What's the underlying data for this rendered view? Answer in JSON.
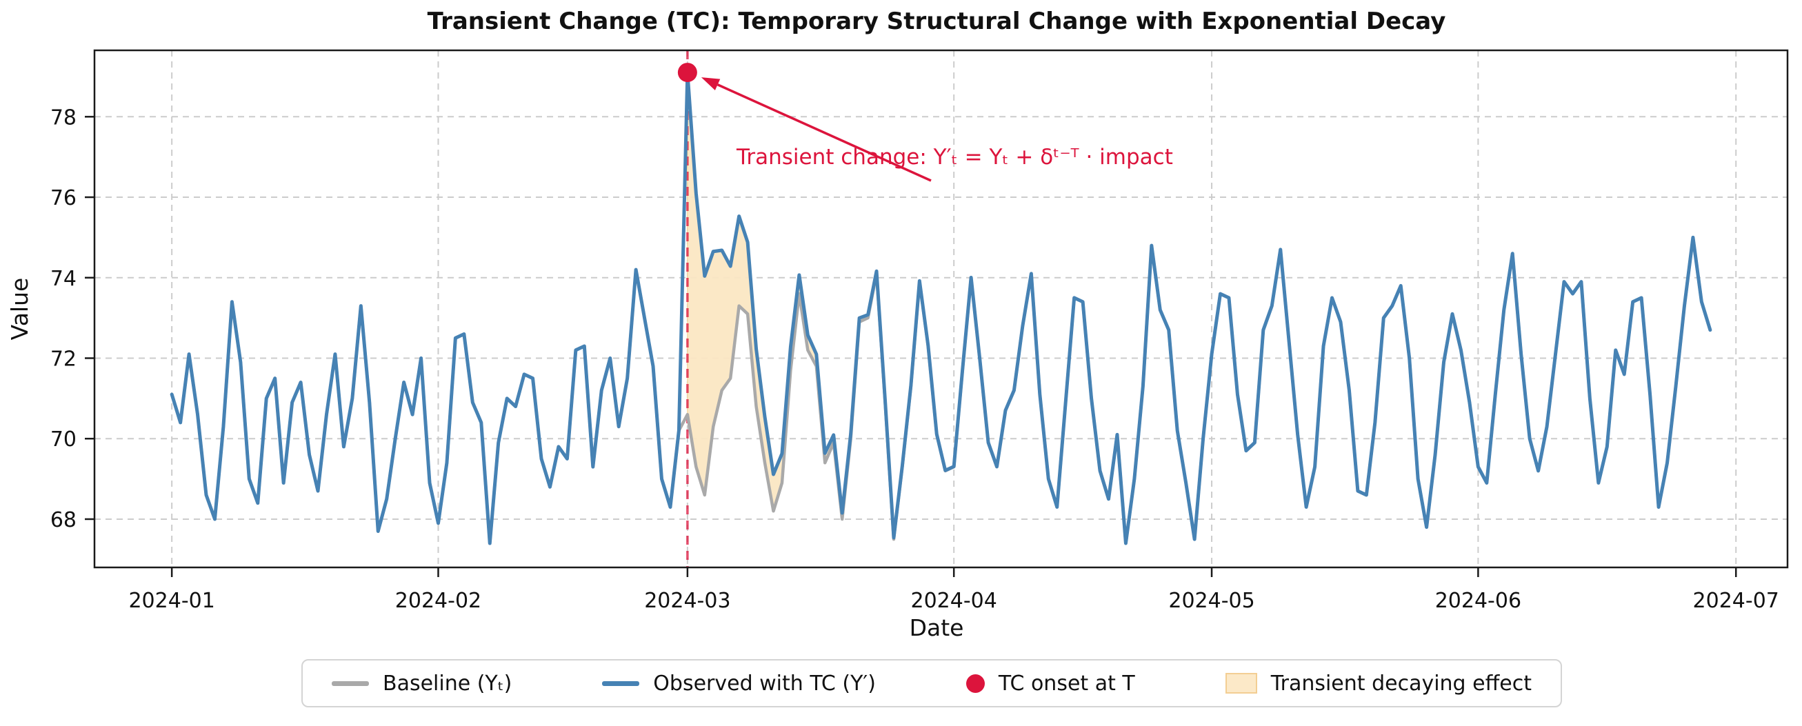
{
  "title": "Transient Change (TC): Temporary Structural Change with Exponential Decay",
  "axes": {
    "x_label": "Date",
    "y_label": "Value",
    "y_ticks": [
      68,
      70,
      72,
      74,
      76,
      78
    ],
    "x_ticks": [
      {
        "label": "2024-01",
        "day": 0
      },
      {
        "label": "2024-02",
        "day": 31
      },
      {
        "label": "2024-03",
        "day": 60
      },
      {
        "label": "2024-04",
        "day": 91
      },
      {
        "label": "2024-05",
        "day": 121
      },
      {
        "label": "2024-06",
        "day": 152
      },
      {
        "label": "2024-07",
        "day": 182
      }
    ],
    "xlim_days": [
      -9,
      188
    ],
    "ylim": [
      66.8,
      79.65
    ],
    "grid": "dashed"
  },
  "annotation": {
    "text": "Transient change: Y′ₜ = Yₜ + δᵗ⁻ᵀ · impact",
    "color": "#DC143C"
  },
  "legend": {
    "items": [
      {
        "id": "baseline",
        "label": "Baseline (Yₜ)",
        "swatch": "line",
        "color": "#A9A9A9"
      },
      {
        "id": "observed",
        "label": "Observed with TC (Y′)",
        "swatch": "line",
        "color": "#4682B4"
      },
      {
        "id": "tc-onset",
        "label": "TC onset at T",
        "swatch": "dot",
        "color": "#DC143C"
      },
      {
        "id": "transient-effect",
        "label": "Transient decaying effect",
        "swatch": "patch",
        "color": "#FCE9C8",
        "edge": "#F3CE93"
      }
    ]
  },
  "colors": {
    "observed_line": "#4682B4",
    "baseline_line": "#A9A9A9",
    "accent_red": "#DC143C",
    "transient_fill": "#FBE7C4",
    "transient_fill_edge": "#F5D7A0",
    "grid_line": "#CCCCCC",
    "spine": "#1a1a1a",
    "background": "#FFFFFF"
  },
  "chart_data": {
    "type": "line",
    "title": "Transient Change (TC): Temporary Structural Change with Exponential Decay",
    "xlabel": "Date",
    "ylabel": "Value",
    "start_date": "2024-01-01",
    "end_date": "2024-06-28",
    "frequency": "daily",
    "n_points": 180,
    "x_tick_labels": [
      "2024-01",
      "2024-02",
      "2024-03",
      "2024-04",
      "2024-05",
      "2024-06",
      "2024-07"
    ],
    "ylim": [
      66.8,
      79.65
    ],
    "legend_position": "lower center",
    "grid": true,
    "tc": {
      "onset_date": "2024-03-01",
      "onset_index": 60,
      "impact": 8.5,
      "delta": 0.8,
      "formula": "Y'_t = Y_t + delta^(t-T) * impact for t >= T",
      "onset_marker_value": 79.1,
      "fill_between": "baseline and observed from onset until decay vanishes (~2024-03-20)"
    },
    "series": [
      {
        "name": "Baseline (Yt)",
        "values": [
          71.1,
          70.4,
          72.1,
          70.6,
          68.6,
          68.0,
          70.3,
          73.4,
          71.9,
          69.0,
          68.4,
          71.0,
          71.5,
          68.9,
          70.9,
          71.4,
          69.6,
          68.7,
          70.6,
          72.1,
          69.8,
          71.0,
          73.3,
          70.9,
          67.7,
          68.5,
          70.0,
          71.4,
          70.6,
          72.0,
          68.9,
          67.9,
          69.4,
          72.5,
          72.6,
          70.9,
          70.4,
          67.4,
          69.9,
          71.0,
          70.8,
          71.6,
          71.5,
          69.5,
          68.8,
          69.8,
          69.5,
          72.2,
          72.3,
          69.3,
          71.2,
          72.0,
          70.3,
          71.5,
          74.2,
          73.0,
          71.8,
          69.0,
          68.3,
          70.2,
          70.6,
          69.3,
          68.6,
          70.3,
          71.2,
          71.5,
          73.3,
          73.1,
          70.8,
          69.4,
          68.2,
          68.9,
          71.7,
          73.6,
          72.2,
          71.8,
          69.4,
          69.9,
          68.0,
          70.0,
          72.9,
          73.0,
          74.1,
          70.9,
          67.5,
          69.3,
          71.3,
          73.9,
          72.3,
          70.1,
          69.2,
          69.3,
          71.7,
          74.0,
          72.0,
          69.9,
          69.3,
          70.7,
          71.2,
          72.8,
          74.1,
          71.1,
          69.0,
          68.3,
          70.9,
          73.5,
          73.4,
          71.0,
          69.2,
          68.5,
          70.1,
          67.4,
          69.0,
          71.3,
          74.8,
          73.2,
          72.7,
          70.2,
          68.9,
          67.5,
          70.0,
          72.1,
          73.6,
          73.5,
          71.1,
          69.7,
          69.9,
          72.7,
          73.3,
          74.7,
          72.4,
          70.1,
          68.3,
          69.3,
          72.3,
          73.5,
          72.9,
          71.2,
          68.7,
          68.6,
          70.4,
          73.0,
          73.3,
          73.8,
          72.0,
          69.0,
          67.8,
          69.6,
          71.9,
          73.1,
          72.2,
          70.9,
          69.3,
          68.9,
          71.1,
          73.2,
          74.6,
          72.1,
          70.0,
          69.2,
          70.3,
          72.1,
          73.9,
          73.6,
          73.9,
          71.0,
          68.9,
          69.8,
          72.2,
          71.6,
          73.4,
          73.5,
          71.1,
          68.3,
          69.4,
          71.3,
          73.3,
          75.0,
          73.4,
          72.7
        ]
      },
      {
        "name": "Observed with TC (Y')",
        "derivation": "baseline value + impact * delta^(t - onset_index) for t >= onset_index, equal to baseline before onset",
        "observed_transient_window": {
          "start_index": 60,
          "values": [
            79.1,
            76.1,
            74.04,
            74.65,
            74.68,
            74.29,
            75.53,
            74.88,
            72.23,
            70.54,
            69.11,
            69.63,
            72.28,
            74.07,
            72.57,
            72.1,
            69.64,
            70.09,
            68.15,
            70.12
          ]
        }
      }
    ]
  }
}
